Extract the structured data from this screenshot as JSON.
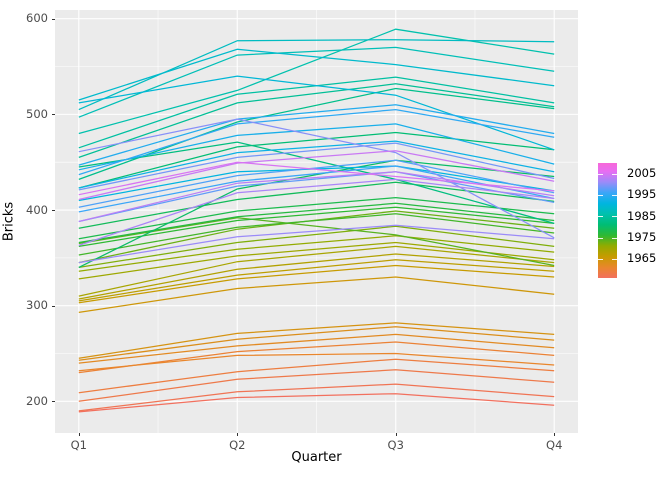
{
  "axes": {
    "xlabel": "Quarter",
    "ylabel": "Bricks",
    "x_ticks": [
      "Q1",
      "Q2",
      "Q3",
      "Q4"
    ],
    "y_ticks": [
      200,
      300,
      400,
      500,
      600
    ],
    "y_minor_ticks": [
      250,
      350,
      450,
      550
    ],
    "tick_label_color": "#4d4d4d",
    "panel_bg": "#ebebeb",
    "grid_color": "#ffffff"
  },
  "legend": {
    "labels": [
      "2005",
      "1995",
      "1985",
      "1975",
      "1965"
    ],
    "break_years": [
      2005,
      1995,
      1985,
      1975,
      1965
    ],
    "year_min": 1956,
    "year_max": 2010,
    "gradient_stops": [
      {
        "year": 1956,
        "color": "#f2705e"
      },
      {
        "year": 1961,
        "color": "#e9862c"
      },
      {
        "year": 1966,
        "color": "#c79b00"
      },
      {
        "year": 1971,
        "color": "#93ab00"
      },
      {
        "year": 1976,
        "color": "#2eb933"
      },
      {
        "year": 1981,
        "color": "#00bd74"
      },
      {
        "year": 1986,
        "color": "#00c1ad"
      },
      {
        "year": 1991,
        "color": "#00b5e0"
      },
      {
        "year": 1996,
        "color": "#3ba6f8"
      },
      {
        "year": 2001,
        "color": "#9b8bf8"
      },
      {
        "year": 2006,
        "color": "#e76df2"
      },
      {
        "year": 2010,
        "color": "#f768d8"
      }
    ]
  },
  "chart_data": {
    "type": "line",
    "x": [
      "Q1",
      "Q2",
      "Q3",
      "Q4"
    ],
    "xlabel": "Quarter",
    "ylabel": "Bricks",
    "xlim": [
      0.85,
      4.15
    ],
    "ylim": [
      166.9,
      609.1
    ],
    "grid": true,
    "legend_position": "right",
    "color_mapping": "year mapped to rainbow hue, 1956=red-orange to 2010=magenta",
    "series": [
      {
        "name": "1956",
        "values": [
          189,
          204,
          208,
          196
        ]
      },
      {
        "name": "1957",
        "values": [
          190,
          210,
          218,
          205
        ]
      },
      {
        "name": "1958",
        "values": [
          200,
          223,
          233,
          220
        ]
      },
      {
        "name": "1959",
        "values": [
          209,
          231,
          244,
          232
        ]
      },
      {
        "name": "1960",
        "values": [
          230,
          252,
          262,
          248
        ]
      },
      {
        "name": "1961",
        "values": [
          232,
          248,
          250,
          238
        ]
      },
      {
        "name": "1962",
        "values": [
          240,
          258,
          270,
          256
        ]
      },
      {
        "name": "1963",
        "values": [
          243,
          265,
          278,
          264
        ]
      },
      {
        "name": "1964",
        "values": [
          245,
          271,
          282,
          270
        ]
      },
      {
        "name": "1965",
        "values": [
          293,
          318,
          330,
          312
        ]
      },
      {
        "name": "1966",
        "values": [
          303,
          328,
          342,
          330
        ]
      },
      {
        "name": "1967",
        "values": [
          305,
          332,
          348,
          336
        ]
      },
      {
        "name": "1968",
        "values": [
          307,
          338,
          354,
          341
        ]
      },
      {
        "name": "1969",
        "values": [
          310,
          346,
          362,
          345
        ]
      },
      {
        "name": "1970",
        "values": [
          328,
          352,
          366,
          348
        ]
      },
      {
        "name": "1971",
        "values": [
          336,
          359,
          373,
          356
        ]
      },
      {
        "name": "1972",
        "values": [
          340,
          366,
          383,
          362
        ]
      },
      {
        "name": "1973",
        "values": [
          345,
          380,
          399,
          381
        ]
      },
      {
        "name": "1974",
        "values": [
          365,
          392,
          374,
          342
        ]
      },
      {
        "name": "1975",
        "values": [
          353,
          382,
          396,
          376
        ]
      },
      {
        "name": "1976",
        "values": [
          362,
          389,
          403,
          386
        ]
      },
      {
        "name": "1977",
        "values": [
          366,
          393,
          407,
          389
        ]
      },
      {
        "name": "1978",
        "values": [
          370,
          399,
          413,
          396
        ]
      },
      {
        "name": "1979",
        "values": [
          381,
          411,
          429,
          409
        ]
      },
      {
        "name": "1980",
        "values": [
          340,
          422,
          452,
          435
        ]
      },
      {
        "name": "1981",
        "values": [
          423,
          466,
          481,
          463
        ]
      },
      {
        "name": "1982",
        "values": [
          445,
          471,
          432,
          386
        ]
      },
      {
        "name": "1983",
        "values": [
          432,
          492,
          527,
          506
        ]
      },
      {
        "name": "1984",
        "values": [
          455,
          512,
          532,
          508
        ]
      },
      {
        "name": "1985",
        "values": [
          465,
          521,
          539,
          512
        ]
      },
      {
        "name": "1986",
        "values": [
          480,
          525,
          589,
          563
        ]
      },
      {
        "name": "1987",
        "values": [
          497,
          562,
          570,
          545
        ]
      },
      {
        "name": "1988",
        "values": [
          505,
          577,
          578,
          576
        ]
      },
      {
        "name": "1989",
        "values": [
          515,
          568,
          552,
          530
        ]
      },
      {
        "name": "1990",
        "values": [
          512,
          540,
          520,
          463
        ]
      },
      {
        "name": "1991",
        "values": [
          410,
          440,
          446,
          420
        ]
      },
      {
        "name": "1992",
        "values": [
          423,
          460,
          472,
          440
        ]
      },
      {
        "name": "1993",
        "values": [
          442,
          478,
          490,
          448
        ]
      },
      {
        "name": "1994",
        "values": [
          447,
          495,
          510,
          480
        ]
      },
      {
        "name": "1995",
        "values": [
          437,
          490,
          505,
          476
        ]
      },
      {
        "name": "1996",
        "values": [
          398,
          430,
          446,
          412
        ]
      },
      {
        "name": "1997",
        "values": [
          403,
          436,
          452,
          418
        ]
      },
      {
        "name": "1998",
        "values": [
          388,
          425,
          440,
          408
        ]
      },
      {
        "name": "1999",
        "values": [
          421,
          455,
          470,
          433
        ]
      },
      {
        "name": "2000",
        "values": [
          461,
          495,
          460,
          371
        ]
      },
      {
        "name": "2001",
        "values": [
          345,
          372,
          384,
          370
        ]
      },
      {
        "name": "2002",
        "values": [
          363,
          418,
          432,
          412
        ]
      },
      {
        "name": "2003",
        "values": [
          388,
          428,
          440,
          415
        ]
      },
      {
        "name": "2004",
        "values": [
          411,
          449,
          462,
          430
        ]
      },
      {
        "name": "2005",
        "values": [
          416,
          450,
          435,
          420
        ]
      }
    ]
  }
}
